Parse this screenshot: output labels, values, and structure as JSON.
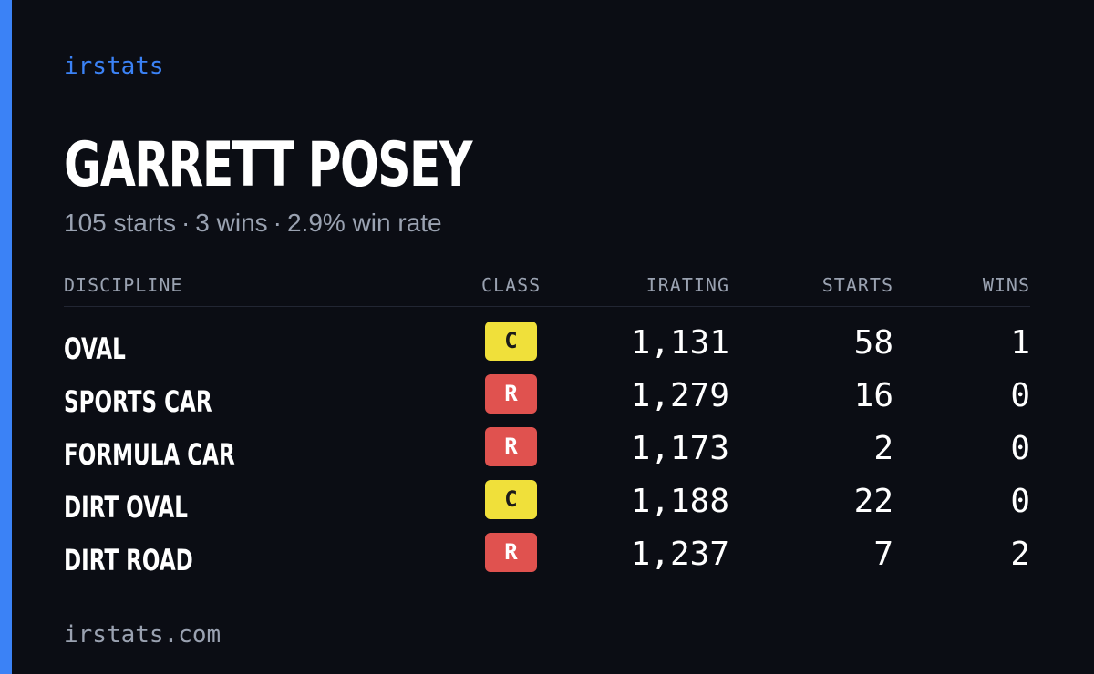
{
  "brand": "irstats",
  "driver": {
    "name": "GARRETT POSEY"
  },
  "summary": {
    "starts": "105 starts",
    "wins": "3 wins",
    "win_rate": "2.9% win rate",
    "separator": "·"
  },
  "table": {
    "headers": {
      "discipline": "DISCIPLINE",
      "class": "CLASS",
      "irating": "IRATING",
      "starts": "STARTS",
      "wins": "WINS"
    },
    "rows": [
      {
        "discipline": "OVAL",
        "class": "C",
        "irating": "1,131",
        "starts": "58",
        "wins": "1"
      },
      {
        "discipline": "SPORTS CAR",
        "class": "R",
        "irating": "1,279",
        "starts": "16",
        "wins": "0"
      },
      {
        "discipline": "FORMULA CAR",
        "class": "R",
        "irating": "1,173",
        "starts": "2",
        "wins": "0"
      },
      {
        "discipline": "DIRT OVAL",
        "class": "C",
        "irating": "1,188",
        "starts": "22",
        "wins": "0"
      },
      {
        "discipline": "DIRT ROAD",
        "class": "R",
        "irating": "1,237",
        "starts": "7",
        "wins": "2"
      }
    ]
  },
  "class_colors": {
    "C": {
      "background": "#f0e03a",
      "text": "#1a1a1a"
    },
    "R": {
      "background": "#e0524f",
      "text": "#ffffff"
    }
  },
  "colors": {
    "accent": "#3b82f6",
    "background": "#0b0d14",
    "muted_text": "#9aa2b1"
  },
  "footer": "irstats.com"
}
